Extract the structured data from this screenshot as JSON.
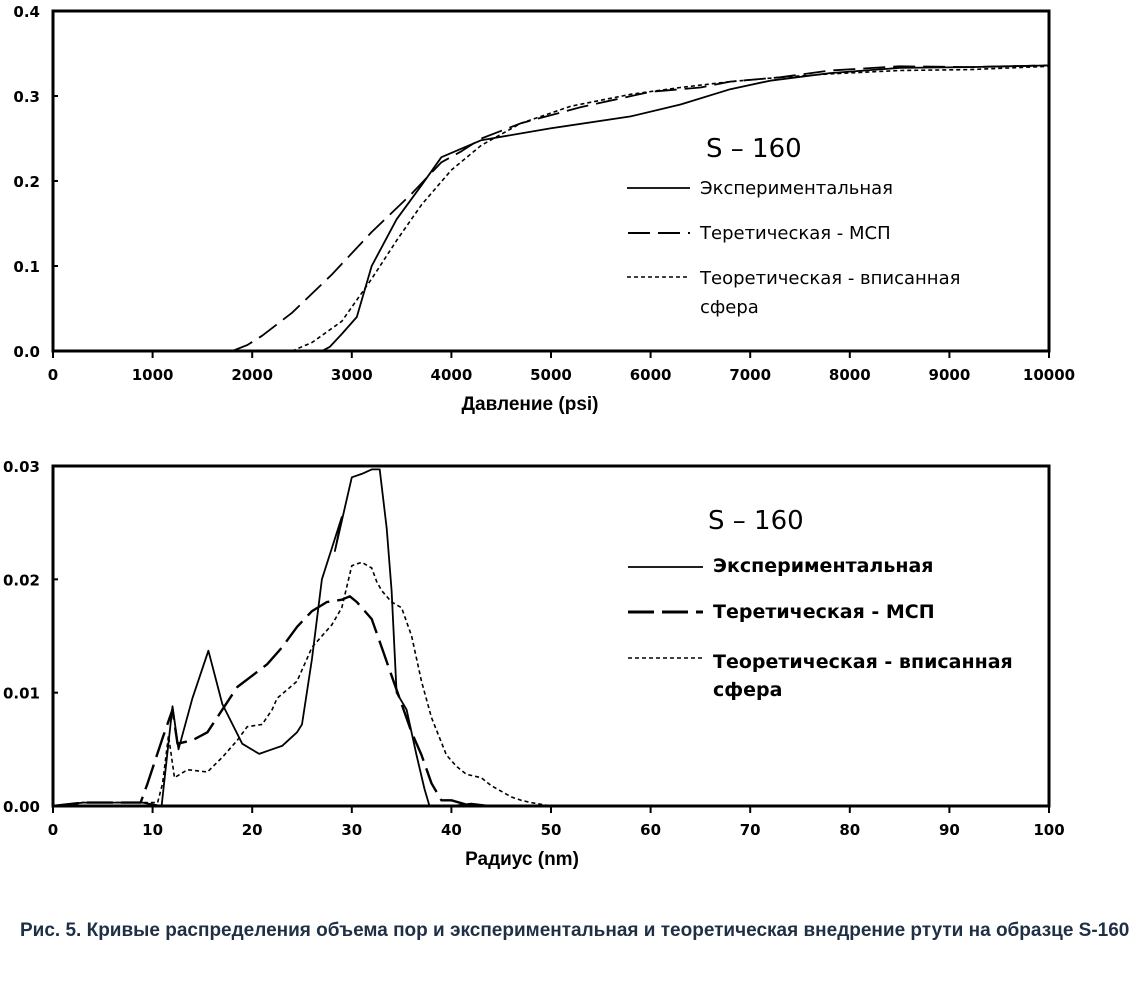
{
  "caption": "Рис. 5. Кривые распределения объема пор и экспериментальная и теоретическая внедрение ртути на образце S-160",
  "chart_data": [
    {
      "type": "line",
      "title": "S – 160",
      "xlabel": "Давление (psi)",
      "ylabel": "",
      "xlim": [
        0,
        10000
      ],
      "ylim": [
        0,
        0.4
      ],
      "xticks": [
        "0",
        "1000",
        "2000",
        "3000",
        "4000",
        "5000",
        "6000",
        "7000",
        "8000",
        "9000",
        "10000"
      ],
      "yticks": [
        "0.0",
        "0.1",
        "0.2",
        "0.3",
        "0.4"
      ],
      "grid": false,
      "legend_position": "right",
      "series": [
        {
          "name": "Экспериментальная",
          "style": "solid",
          "points": [
            [
              2700,
              0
            ],
            [
              2780,
              0.005
            ],
            [
              2900,
              0.02
            ],
            [
              3050,
              0.04
            ],
            [
              3200,
              0.1
            ],
            [
              3450,
              0.155
            ],
            [
              3700,
              0.195
            ],
            [
              3900,
              0.228
            ],
            [
              4300,
              0.248
            ],
            [
              5000,
              0.262
            ],
            [
              5800,
              0.276
            ],
            [
              6300,
              0.29
            ],
            [
              6800,
              0.308
            ],
            [
              7200,
              0.318
            ],
            [
              7800,
              0.327
            ],
            [
              8500,
              0.333
            ],
            [
              9200,
              0.334
            ],
            [
              10000,
              0.336
            ]
          ]
        },
        {
          "name": "Теретическая - МСП",
          "style": "dashed",
          "points": [
            [
              1800,
              0
            ],
            [
              1950,
              0.007
            ],
            [
              2100,
              0.018
            ],
            [
              2400,
              0.045
            ],
            [
              2800,
              0.09
            ],
            [
              3200,
              0.14
            ],
            [
              3600,
              0.185
            ],
            [
              3900,
              0.222
            ],
            [
              4100,
              0.235
            ],
            [
              4300,
              0.25
            ],
            [
              4700,
              0.268
            ],
            [
              5300,
              0.287
            ],
            [
              6000,
              0.305
            ],
            [
              6500,
              0.31
            ],
            [
              6800,
              0.317
            ],
            [
              7300,
              0.322
            ],
            [
              7800,
              0.33
            ],
            [
              8500,
              0.335
            ],
            [
              9200,
              0.334
            ],
            [
              10000,
              0.336
            ]
          ]
        },
        {
          "name": "Теоретическая - вписанная сфера",
          "style": "dotted",
          "points": [
            [
              2400,
              0
            ],
            [
              2600,
              0.01
            ],
            [
              2900,
              0.035
            ],
            [
              3200,
              0.085
            ],
            [
              3450,
              0.13
            ],
            [
              3700,
              0.172
            ],
            [
              4000,
              0.213
            ],
            [
              4300,
              0.242
            ],
            [
              4700,
              0.268
            ],
            [
              5200,
              0.288
            ],
            [
              5800,
              0.302
            ],
            [
              6300,
              0.31
            ],
            [
              6800,
              0.317
            ],
            [
              7300,
              0.322
            ],
            [
              7800,
              0.326
            ],
            [
              8500,
              0.33
            ],
            [
              9200,
              0.331
            ],
            [
              10000,
              0.335
            ]
          ]
        }
      ]
    },
    {
      "type": "line",
      "title": "S – 160",
      "xlabel": "Радиус (nm)",
      "ylabel": "",
      "xlim": [
        0,
        100
      ],
      "ylim": [
        0,
        0.03
      ],
      "xticks": [
        "0",
        "10",
        "20",
        "30",
        "40",
        "50",
        "60",
        "70",
        "80",
        "90",
        "100"
      ],
      "yticks": [
        "0.00",
        "0.01",
        "0.02",
        "0.03"
      ],
      "grid": false,
      "legend_position": "right",
      "series": [
        {
          "name": "Экспериментальная",
          "style": "solid",
          "points": [
            [
              0,
              0
            ],
            [
              3,
              0.0003
            ],
            [
              9,
              0.0003
            ],
            [
              10.9,
              0
            ],
            [
              12,
              0.0088
            ],
            [
              12.6,
              0.005
            ],
            [
              14,
              0.0095
            ],
            [
              15.6,
              0.0137
            ],
            [
              17,
              0.009
            ],
            [
              19,
              0.0055
            ],
            [
              20.7,
              0.0046
            ],
            [
              22,
              0.005
            ],
            [
              23,
              0.0053
            ],
            [
              24.5,
              0.0065
            ],
            [
              25,
              0.0072
            ],
            [
              26,
              0.013
            ],
            [
              27,
              0.02
            ],
            [
              29,
              0.0255
            ],
            [
              28.3,
              0.0225
            ],
            [
              30,
              0.029
            ],
            [
              31,
              0.0293
            ],
            [
              32,
              0.0297
            ],
            [
              32.8,
              0.0297
            ],
            [
              33.5,
              0.0245
            ],
            [
              34,
              0.019
            ],
            [
              34.5,
              0.01
            ],
            [
              35.5,
              0.0085
            ],
            [
              36.5,
              0.0045
            ],
            [
              37.3,
              0.0015
            ],
            [
              37.8,
              0
            ],
            [
              40,
              0
            ],
            [
              42,
              0.0002
            ],
            [
              44,
              0
            ],
            [
              100,
              0
            ]
          ]
        },
        {
          "name": "Теретическая - МСП",
          "style": "dashed",
          "points": [
            [
              0,
              0
            ],
            [
              3,
              0.0003
            ],
            [
              8.8,
              0.0003
            ],
            [
              9.5,
              0.002
            ],
            [
              11,
              0.006
            ],
            [
              12,
              0.0085
            ],
            [
              12.5,
              0.0055
            ],
            [
              14,
              0.0058
            ],
            [
              15.5,
              0.0065
            ],
            [
              17,
              0.0085
            ],
            [
              18.5,
              0.0105
            ],
            [
              20,
              0.0115
            ],
            [
              21.5,
              0.0125
            ],
            [
              23,
              0.014
            ],
            [
              24.5,
              0.0158
            ],
            [
              26,
              0.0172
            ],
            [
              27.5,
              0.018
            ],
            [
              29,
              0.0182
            ],
            [
              29.8,
              0.0185
            ],
            [
              30.5,
              0.018
            ],
            [
              32,
              0.0165
            ],
            [
              33,
              0.014
            ],
            [
              34,
              0.0115
            ],
            [
              35,
              0.009
            ],
            [
              36,
              0.0065
            ],
            [
              37,
              0.0045
            ],
            [
              38,
              0.002
            ],
            [
              39,
              0.0005
            ],
            [
              40,
              0.0005
            ],
            [
              42,
              0
            ],
            [
              100,
              0
            ]
          ]
        },
        {
          "name": "Теоретическая - вписанная сфера",
          "style": "dotted",
          "points": [
            [
              0,
              0
            ],
            [
              3,
              0.0003
            ],
            [
              10.5,
              0.0003
            ],
            [
              11,
              0.002
            ],
            [
              11.6,
              0.0062
            ],
            [
              12.2,
              0.0025
            ],
            [
              13.5,
              0.0032
            ],
            [
              15.5,
              0.003
            ],
            [
              17,
              0.0043
            ],
            [
              18.5,
              0.0058
            ],
            [
              19.5,
              0.007
            ],
            [
              21,
              0.0072
            ],
            [
              22,
              0.0085
            ],
            [
              22.5,
              0.0095
            ],
            [
              24.5,
              0.011
            ],
            [
              25.5,
              0.013
            ],
            [
              26,
              0.014
            ],
            [
              27,
              0.015
            ],
            [
              28,
              0.016
            ],
            [
              29,
              0.0175
            ],
            [
              30,
              0.0212
            ],
            [
              31,
              0.0215
            ],
            [
              32,
              0.021
            ],
            [
              32.5,
              0.0198
            ],
            [
              33,
              0.019
            ],
            [
              34,
              0.018
            ],
            [
              35,
              0.0175
            ],
            [
              36,
              0.015
            ],
            [
              37,
              0.011
            ],
            [
              38,
              0.0078
            ],
            [
              39.5,
              0.0045
            ],
            [
              40.5,
              0.0035
            ],
            [
              41.5,
              0.0028
            ],
            [
              43,
              0.0025
            ],
            [
              44,
              0.0018
            ],
            [
              46,
              0.0008
            ],
            [
              47,
              0.0005
            ],
            [
              48,
              0.0003
            ],
            [
              50,
              0
            ],
            [
              100,
              0
            ]
          ]
        }
      ]
    }
  ]
}
